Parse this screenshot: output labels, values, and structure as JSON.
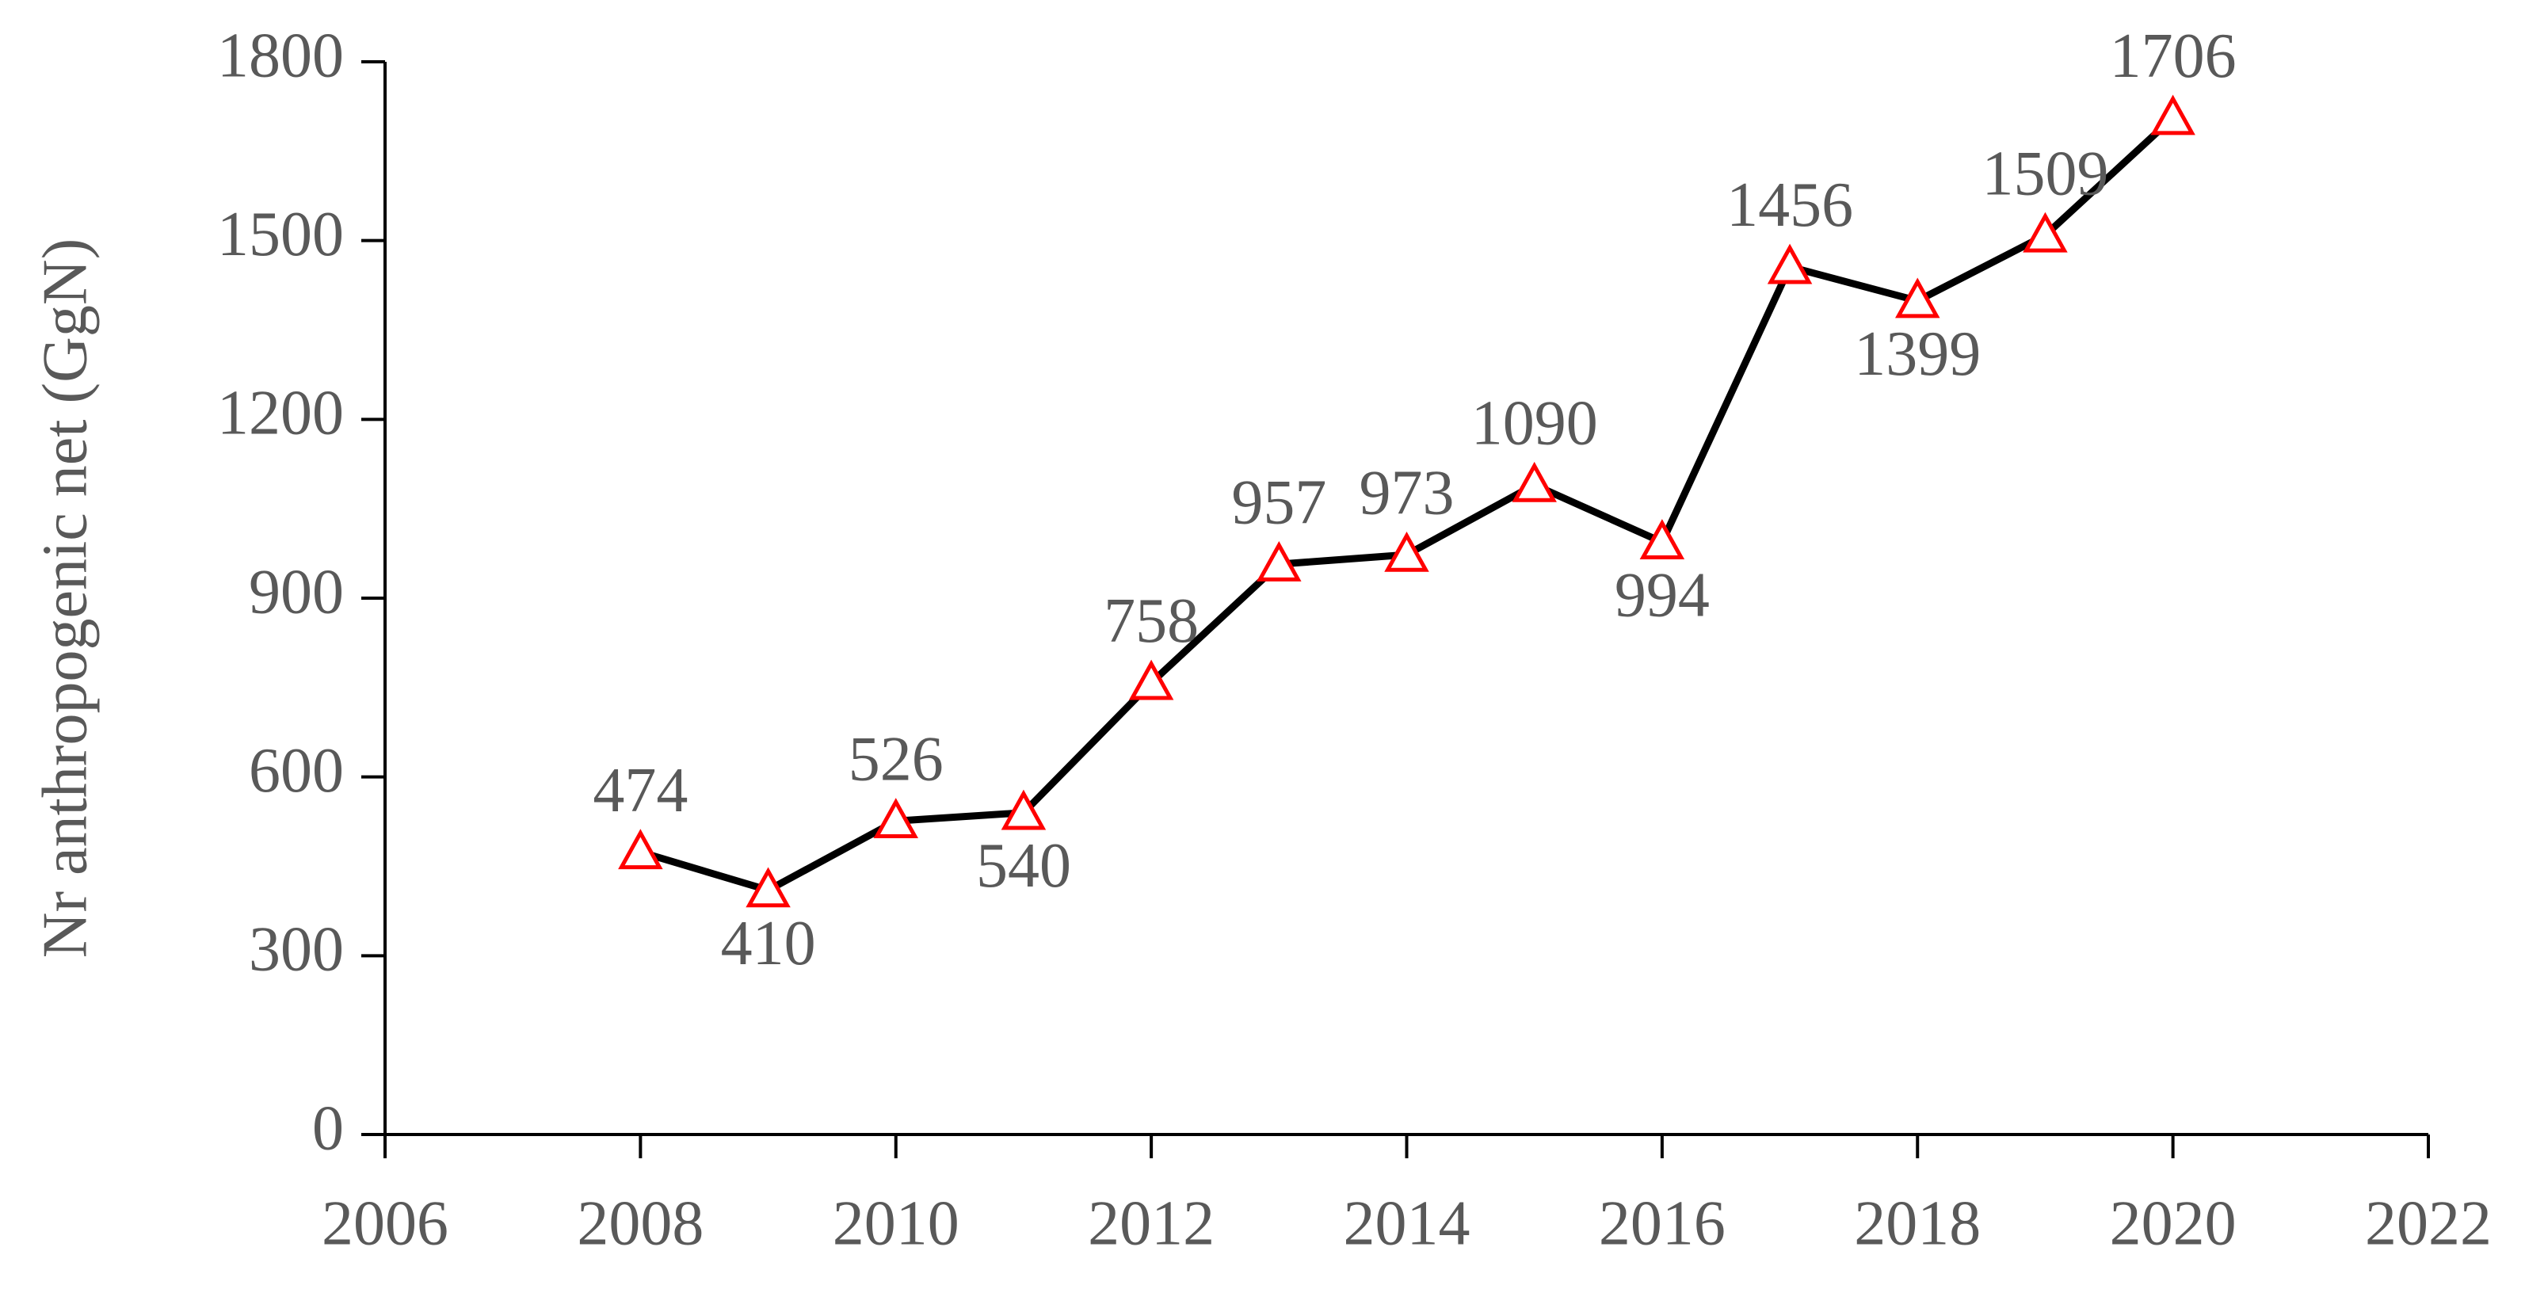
{
  "chart_data": {
    "type": "line",
    "y_label": "Nr anthropogenic net (GgN)",
    "x": [
      2008,
      2009,
      2010,
      2011,
      2012,
      2013,
      2014,
      2015,
      2016,
      2017,
      2018,
      2019,
      2020
    ],
    "values": [
      474,
      410,
      526,
      540,
      758,
      957,
      973,
      1090,
      994,
      1456,
      1399,
      1509,
      1706
    ],
    "color": "#000000",
    "marker": "triangle",
    "marker_color": "#ff0000",
    "xlim": [
      2006,
      2022
    ],
    "xticks": [
      2006,
      2008,
      2010,
      2012,
      2014,
      2016,
      2018,
      2020,
      2022
    ],
    "ylim": [
      0,
      1800
    ],
    "yticks": [
      0,
      300,
      600,
      900,
      1200,
      1500,
      1800
    ],
    "grid": false
  }
}
